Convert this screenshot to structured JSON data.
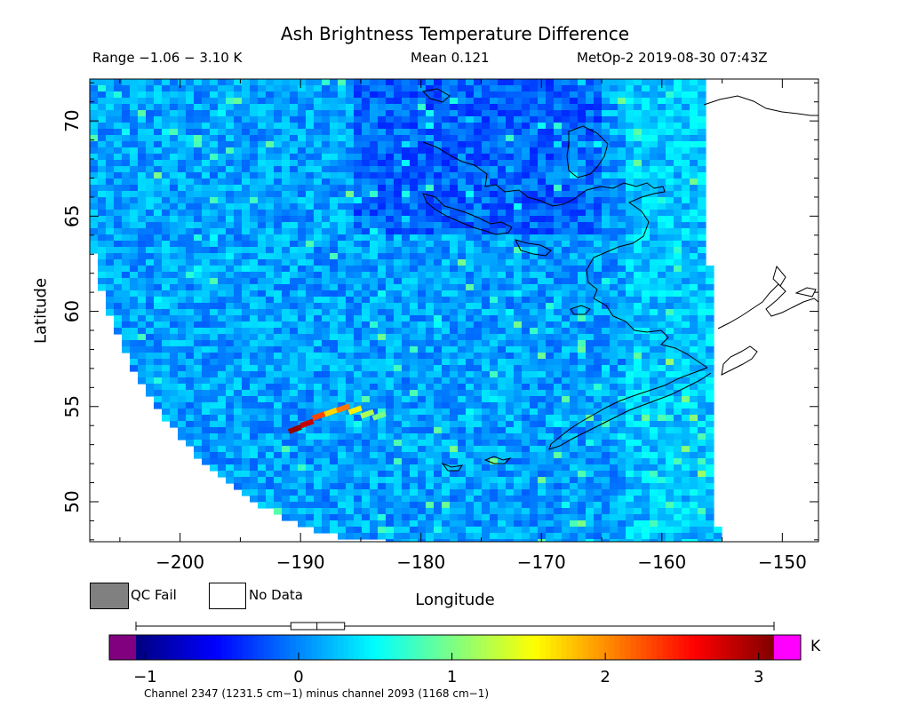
{
  "chart_data": {
    "type": "heatmap",
    "title": "Ash Brightness Temperature Difference",
    "subtitle_left": "Range −1.06 − 3.10 K",
    "subtitle_center": "Mean 0.121",
    "subtitle_right": "MetOp-2 2019-08-30 07:43Z",
    "xlabel": "Longitude",
    "ylabel": "Latitude",
    "xlim": [
      -207.5,
      -147
    ],
    "ylim": [
      47.9,
      72.2
    ],
    "x_ticks": [
      -200,
      -190,
      -180,
      -170,
      -160,
      -150
    ],
    "x_tick_labels": [
      "−200",
      "−190",
      "−180",
      "−170",
      "−160",
      "−150"
    ],
    "y_ticks": [
      50,
      55,
      60,
      65,
      70
    ],
    "y_tick_labels": [
      "50",
      "55",
      "60",
      "65",
      "70"
    ],
    "data_range": [
      -1.06,
      3.1
    ],
    "mean": 0.121,
    "satellite": "MetOp-2",
    "datetime": "2019-08-30 07:43Z",
    "colorbar": {
      "min": -1.2,
      "max": 3.3,
      "ticks": [
        -1,
        0,
        1,
        2,
        3
      ],
      "tick_labels": [
        "−1",
        "0",
        "1",
        "2",
        "3"
      ],
      "unit": "K",
      "under_color": "#800080",
      "over_color": "#ff00ff",
      "stops": [
        "#000080",
        "#0000ff",
        "#0080ff",
        "#00ffff",
        "#80ff80",
        "#ffff00",
        "#ff8000",
        "#ff0000",
        "#800000"
      ],
      "boxplot": {
        "whisker_low": -1.06,
        "q1": -0.05,
        "median": 0.12,
        "q3": 0.3,
        "whisker_high": 3.1
      }
    },
    "footnote": "Channel 2347 (1231.5 cm−1) minus channel 2093 (1168 cm−1)",
    "swath_anomaly": [
      {
        "lon": -190.5,
        "lat": 53.8,
        "value": 3.0
      },
      {
        "lon": -189.5,
        "lat": 54.1,
        "value": 2.8
      },
      {
        "lon": -188.5,
        "lat": 54.5,
        "value": 2.3
      },
      {
        "lon": -187.5,
        "lat": 54.7,
        "value": 1.7
      },
      {
        "lon": -186.5,
        "lat": 54.9,
        "value": 2.1
      },
      {
        "lon": -185.5,
        "lat": 54.8,
        "value": 1.6
      },
      {
        "lon": -184.5,
        "lat": 54.6,
        "value": 1.2
      },
      {
        "lon": -183.5,
        "lat": 54.5,
        "value": 1.0
      }
    ],
    "legend": [
      {
        "label": "QC Fail",
        "color": "#808080"
      },
      {
        "label": "No Data",
        "color": "#ffffff"
      }
    ]
  }
}
